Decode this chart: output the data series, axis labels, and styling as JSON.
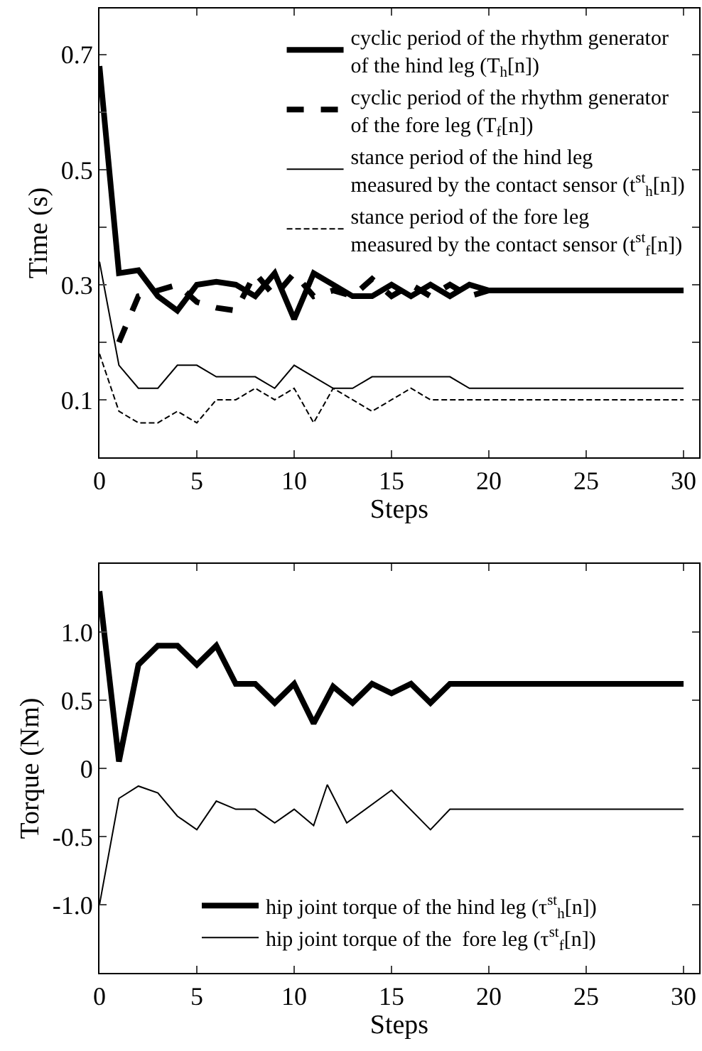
{
  "chart_data": [
    {
      "type": "line",
      "xlabel": "Steps",
      "ylabel": "Time (s)",
      "xlim": [
        0,
        30.8
      ],
      "ylim": [
        0,
        0.78
      ],
      "xticks": [
        0,
        5,
        10,
        15,
        20,
        25,
        30
      ],
      "yticks": [
        {
          "value": 0.1,
          "label": "0.1"
        },
        {
          "value": 0.2,
          "label": null
        },
        {
          "value": 0.3,
          "label": "0.3"
        },
        {
          "value": 0.4,
          "label": null
        },
        {
          "value": 0.5,
          "label": "0.5"
        },
        {
          "value": 0.6,
          "label": null
        },
        {
          "value": 0.7,
          "label": "0.7"
        }
      ],
      "legend": "top right",
      "marker": "none",
      "x": [
        0,
        1,
        2,
        3,
        4,
        5,
        6,
        7,
        8,
        9,
        10,
        11,
        12,
        13,
        14,
        15,
        16,
        17,
        18,
        19,
        20,
        21,
        22,
        23,
        24,
        25,
        26,
        27,
        28,
        29,
        30
      ],
      "series": [
        {
          "name": "cyclic period of the rhythm generator\nof the hind leg (T$_{h}$[n])",
          "color": "#000000",
          "line_style": "solid",
          "values": [
            0.68,
            0.32,
            0.325,
            0.28,
            0.255,
            0.3,
            0.305,
            0.3,
            0.28,
            0.32,
            0.24,
            0.32,
            0.3,
            0.28,
            0.28,
            0.3,
            0.28,
            0.3,
            0.28,
            0.3,
            0.29,
            0.29,
            0.29,
            0.29,
            0.29,
            0.29,
            0.29,
            0.29,
            0.29,
            0.29,
            0.29
          ]
        },
        {
          "name": "cyclic period of the rhythm generator\nof the fore leg (T$_{f}$[n])",
          "color": "#000000",
          "line_style": "dashed",
          "x": [
            1,
            2,
            3,
            4,
            5,
            6,
            7,
            8,
            9,
            10,
            11,
            12,
            13,
            14,
            15,
            16,
            17,
            18,
            19,
            20
          ],
          "values": [
            0.2,
            0.28,
            0.29,
            0.3,
            0.27,
            0.26,
            0.255,
            0.32,
            0.28,
            0.32,
            0.28,
            0.29,
            0.28,
            0.31,
            0.28,
            0.3,
            0.28,
            0.3,
            0.28,
            0.29
          ]
        },
        {
          "name": "stance period of the hind leg\nmeasured by the contact sensor (t$^{st}$$_{h}$[n])",
          "color": "#000000",
          "line_style": "solid",
          "values": [
            0.34,
            0.16,
            0.12,
            0.12,
            0.16,
            0.16,
            0.14,
            0.14,
            0.14,
            0.12,
            0.16,
            0.14,
            0.12,
            0.12,
            0.14,
            0.14,
            0.14,
            0.14,
            0.14,
            0.12,
            0.12,
            0.12,
            0.12,
            0.12,
            0.12,
            0.12,
            0.12,
            0.12,
            0.12,
            0.12,
            0.12
          ]
        },
        {
          "name": "stance period of the fore leg\nmeasured by the contact sensor (t$^{st}$$_{f}$[n])",
          "color": "#000000",
          "line_style": "dashed",
          "values": [
            0.18,
            0.08,
            0.06,
            0.06,
            0.08,
            0.06,
            0.1,
            0.1,
            0.12,
            0.1,
            0.12,
            0.06,
            0.12,
            0.1,
            0.08,
            0.1,
            0.12,
            0.1,
            0.1,
            0.1,
            0.1,
            0.1,
            0.1,
            0.1,
            0.1,
            0.1,
            0.1,
            0.1,
            0.1,
            0.1,
            0.1
          ]
        }
      ]
    },
    {
      "type": "line",
      "xlabel": "Steps",
      "ylabel": "Torque (Nm)",
      "xlim": [
        0,
        30.8
      ],
      "ylim": [
        -1.5,
        1.5
      ],
      "xticks": [
        0,
        5,
        10,
        15,
        20,
        25,
        30
      ],
      "yticks": [
        {
          "value": -1,
          "label": "-1.0"
        },
        {
          "value": -0.5,
          "label": "-0.5"
        },
        0,
        {
          "value": 0.5,
          "label": "0.5"
        },
        {
          "value": 1,
          "label": "1.0"
        }
      ],
      "legend": "bottom",
      "marker": "none",
      "series": [
        {
          "name": "hip joint torque of the hind leg (τ$^{st}$$_{h}$[n])",
          "color": "#000000",
          "line_style": "solid",
          "x": [
            0,
            1,
            2,
            3,
            4,
            5,
            6,
            7,
            8,
            9,
            10,
            11,
            12,
            13,
            14,
            15,
            16,
            17,
            18,
            19,
            20,
            21,
            22,
            23,
            24,
            25,
            26,
            27,
            28,
            29,
            30
          ],
          "values": [
            1.3,
            0.05,
            0.76,
            0.9,
            0.9,
            0.76,
            0.9,
            0.62,
            0.62,
            0.48,
            0.62,
            0.33,
            0.6,
            0.48,
            0.62,
            0.55,
            0.62,
            0.48,
            0.62,
            0.62,
            0.62,
            0.62,
            0.62,
            0.62,
            0.62,
            0.62,
            0.62,
            0.62,
            0.62,
            0.62,
            0.62
          ]
        },
        {
          "name": "hip joint torque of the  fore leg (τ$^{st}$$_{f}$[n])",
          "color": "#000000",
          "line_style": "solid",
          "x": [
            0,
            1,
            2,
            3,
            4,
            5,
            6,
            7,
            8,
            9,
            10,
            11,
            11.7,
            12.7,
            15,
            17,
            18,
            20,
            25,
            30
          ],
          "values": [
            -1.0,
            -0.22,
            -0.13,
            -0.18,
            -0.35,
            -0.45,
            -0.24,
            -0.3,
            -0.3,
            -0.4,
            -0.3,
            -0.42,
            -0.12,
            -0.4,
            -0.16,
            -0.45,
            -0.3,
            -0.3,
            -0.3,
            -0.3
          ]
        }
      ]
    }
  ]
}
